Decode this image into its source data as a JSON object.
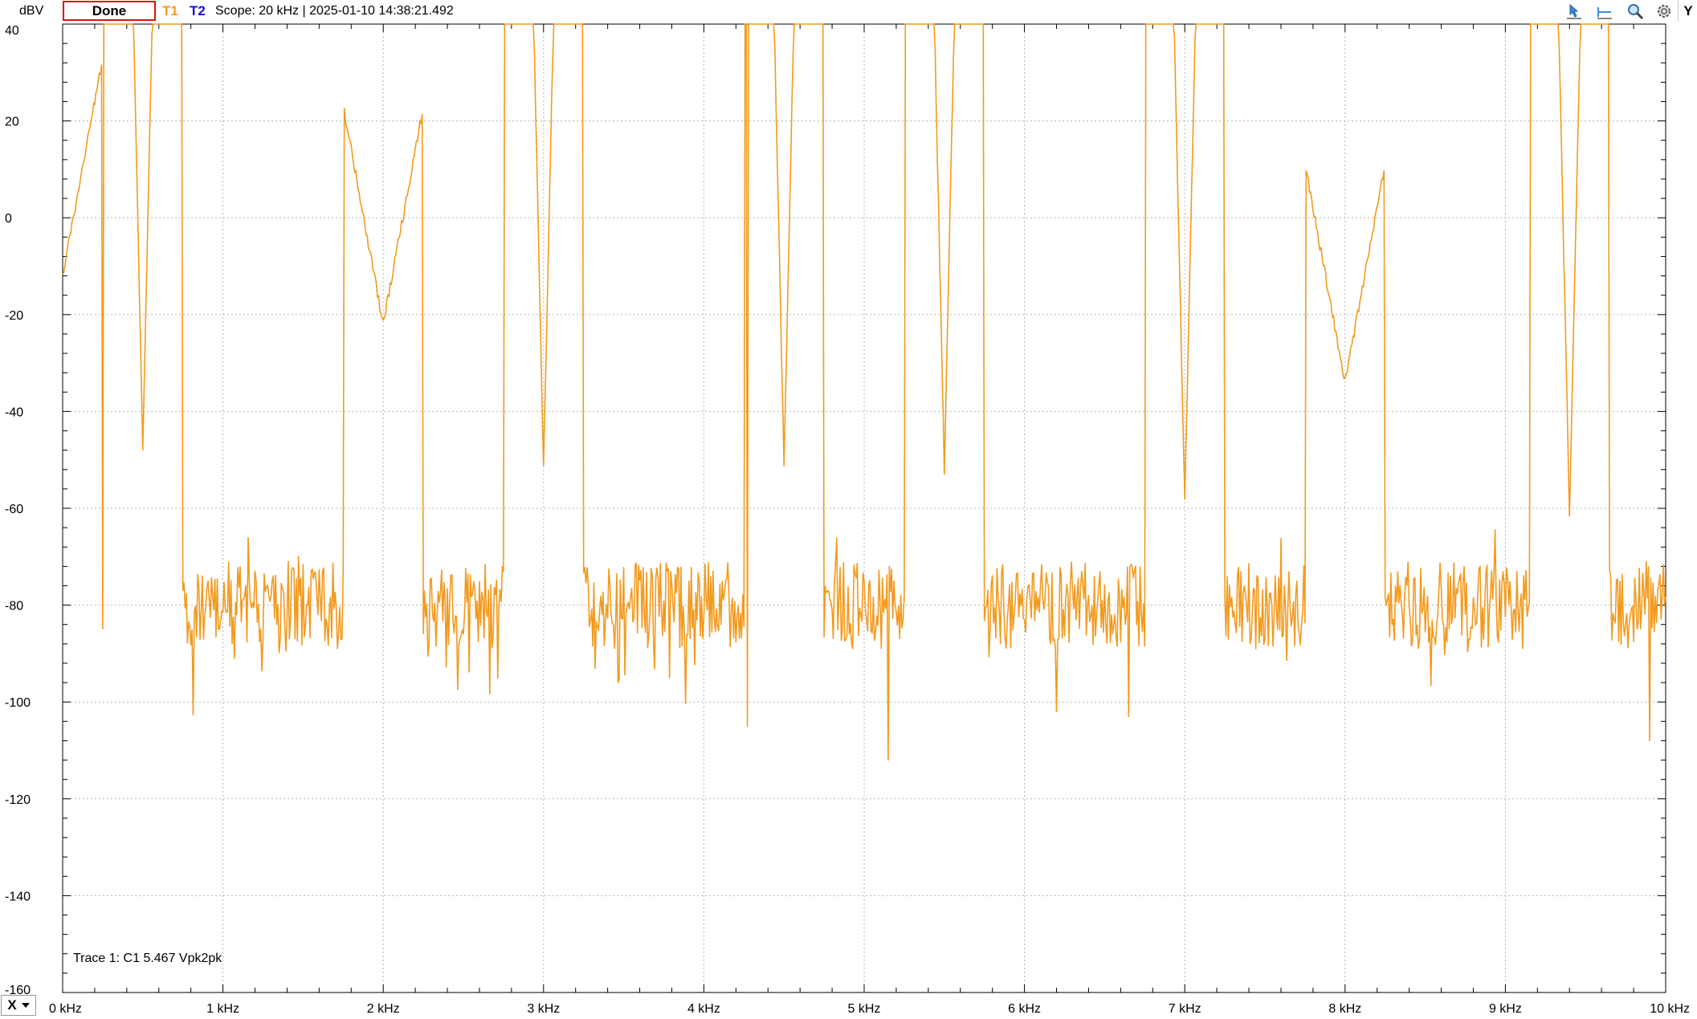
{
  "toolbar": {
    "unit": "dBV",
    "status": "Done",
    "trace1": "T1",
    "trace2": "T2",
    "info": "Scope: 20 kHz | 2025-01-10 14:38:21.492",
    "y_menu": "Y",
    "x_menu": "X",
    "tools": [
      "cursor-arrow-icon",
      "baseline-icon",
      "zoom-icon",
      "settings-gear-icon"
    ]
  },
  "trace_label": "Trace 1: C1 5.467 Vpk2pk",
  "colors": {
    "trace": "#F39A1E",
    "grid": "#b5b5b5",
    "axis": "#000000"
  },
  "chart_data": {
    "type": "line",
    "xlabel": "",
    "ylabel": "dBV",
    "xlim": [
      0,
      10
    ],
    "ylim": [
      -160,
      40
    ],
    "x_ticks": [
      "0 kHz",
      "1 kHz",
      "2 kHz",
      "3 kHz",
      "4 kHz",
      "5 kHz",
      "6 kHz",
      "7 kHz",
      "8 kHz",
      "9 kHz",
      "10 kHz"
    ],
    "y_ticks": [
      "40",
      "20",
      "0",
      "-20",
      "-40",
      "-60",
      "-80",
      "-100",
      "-120",
      "-140",
      "-160"
    ],
    "grid": true,
    "noise_floor_dbv": -80,
    "series": [
      {
        "color": "#F39A1E",
        "peaks": [
          {
            "x": 0.0,
            "y": -12
          },
          {
            "x": 0.5,
            "y": -47
          },
          {
            "x": 2.0,
            "y": -22
          },
          {
            "x": 3.0,
            "y": -52
          },
          {
            "x": 4.5,
            "y": -51
          },
          {
            "x": 5.5,
            "y": -52
          },
          {
            "x": 7.0,
            "y": -59
          },
          {
            "x": 8.0,
            "y": -34
          },
          {
            "x": 9.4,
            "y": -61
          }
        ],
        "dips": [
          {
            "x": 5.15,
            "y": -112
          },
          {
            "x": 9.9,
            "y": -108
          },
          {
            "x": 4.27,
            "y": -105
          },
          {
            "x": 6.65,
            "y": -103
          },
          {
            "x": 6.2,
            "y": -102
          }
        ]
      }
    ]
  }
}
